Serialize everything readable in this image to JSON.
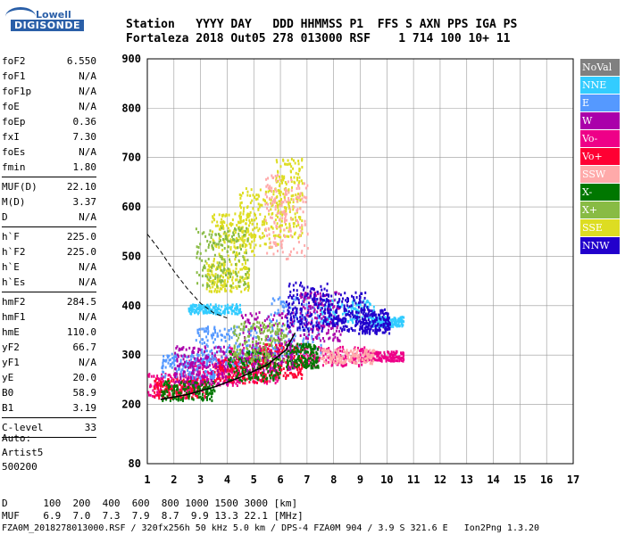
{
  "logo": {
    "line1": "Lowell",
    "line2": "DIGISONDE"
  },
  "header": {
    "line1": "Station   YYYY DAY   DDD HHMMSS P1  FFS S AXN PPS IGA PS",
    "line2": "Fortaleza 2018 Out05 278 013000 RSF    1 714 100 10+ 11"
  },
  "params": [
    {
      "k": "foF2",
      "v": "6.550"
    },
    {
      "k": "foF1",
      "v": "N/A"
    },
    {
      "k": "foF1p",
      "v": "N/A"
    },
    {
      "k": "foE",
      "v": "N/A"
    },
    {
      "k": "foEp",
      "v": "0.36"
    },
    {
      "k": "fxI",
      "v": "7.30"
    },
    {
      "k": "foEs",
      "v": "N/A"
    },
    {
      "k": "fmin",
      "v": "1.80"
    },
    {
      "sep": true
    },
    {
      "k": "MUF(D)",
      "v": "22.10"
    },
    {
      "k": "M(D)",
      "v": "3.37"
    },
    {
      "k": "D",
      "v": "N/A"
    },
    {
      "sep": true
    },
    {
      "k": "h`F",
      "v": "225.0"
    },
    {
      "k": "h`F2",
      "v": "225.0"
    },
    {
      "k": "h`E",
      "v": "N/A"
    },
    {
      "k": "h`Es",
      "v": "N/A"
    },
    {
      "sep": true
    },
    {
      "k": "hmF2",
      "v": "284.5"
    },
    {
      "k": "hmF1",
      "v": "N/A"
    },
    {
      "k": "hmE",
      "v": "110.0"
    },
    {
      "k": "yF2",
      "v": "66.7"
    },
    {
      "k": "yF1",
      "v": "N/A"
    },
    {
      "k": "yE",
      "v": "20.0"
    },
    {
      "k": "B0",
      "v": "58.9"
    },
    {
      "k": "B1",
      "v": "3.19"
    },
    {
      "sep": true
    },
    {
      "k": "C-level",
      "v": "33"
    },
    {
      "sep": true
    }
  ],
  "auto": [
    "Auto:",
    "Artist5",
    "500200"
  ],
  "legend": [
    {
      "label": "NoVal",
      "color": "#808080"
    },
    {
      "label": "NNE",
      "color": "#33ccff"
    },
    {
      "label": "E",
      "color": "#5599ff"
    },
    {
      "label": "W",
      "color": "#aa00aa"
    },
    {
      "label": "Vo-",
      "color": "#ee0088"
    },
    {
      "label": "Vo+",
      "color": "#ff0033"
    },
    {
      "label": "SSW",
      "color": "#ffaaaa"
    },
    {
      "label": "X-",
      "color": "#007700"
    },
    {
      "label": "X+",
      "color": "#88bb44"
    },
    {
      "label": "SSE",
      "color": "#dddd22"
    },
    {
      "label": "NNW",
      "color": "#2200cc"
    }
  ],
  "footer": {
    "line1": "D      100  200  400  600  800 1000 1500 3000 [km]",
    "line2": "MUF    6.9  7.0  7.3  7.9  8.7  9.9 13.3 22.1 [MHz]",
    "line3": "FZA0M_2018278013000.RSF / 320fx256h 50 kHz 5.0 km / DPS-4 FZA0M 904 / 3.9 S 321.6 E   Ion2Png 1.3.20"
  },
  "chart_data": {
    "type": "scatter",
    "xlim": [
      1,
      17
    ],
    "ylim": [
      80,
      900
    ],
    "x_ticks": [
      1,
      2,
      3,
      4,
      5,
      6,
      7,
      8,
      9,
      10,
      11,
      12,
      13,
      14,
      15,
      16,
      17
    ],
    "y_ticks": [
      80,
      200,
      300,
      400,
      500,
      600,
      700,
      800,
      900
    ],
    "grid": true,
    "xlabel": "",
    "ylabel": "",
    "series": [
      {
        "color": "#ee0088",
        "clusters": [
          [
            2.0,
            240,
            1.2,
            25
          ],
          [
            3.5,
            270,
            1.0,
            30
          ],
          [
            5.0,
            285,
            1.0,
            40
          ],
          [
            8.0,
            300,
            1.2,
            20
          ],
          [
            9.8,
            300,
            0.8,
            10
          ]
        ]
      },
      {
        "color": "#ff0033",
        "clusters": [
          [
            2.2,
            235,
            1.0,
            20
          ],
          [
            4.5,
            270,
            1.0,
            25
          ],
          [
            6.0,
            290,
            0.8,
            35
          ]
        ]
      },
      {
        "color": "#5599ff",
        "clusters": [
          [
            2.5,
            280,
            1.0,
            25
          ],
          [
            4.0,
            320,
            1.2,
            40
          ],
          [
            6.5,
            360,
            1.0,
            60
          ]
        ]
      },
      {
        "color": "#33ccff",
        "clusters": [
          [
            3.5,
            395,
            1.0,
            10
          ],
          [
            8.5,
            390,
            1.0,
            25
          ],
          [
            10.0,
            370,
            0.6,
            10
          ]
        ]
      },
      {
        "color": "#007700",
        "clusters": [
          [
            2.5,
            230,
            1.0,
            20
          ],
          [
            5.0,
            280,
            1.0,
            30
          ],
          [
            6.8,
            300,
            0.6,
            25
          ]
        ]
      },
      {
        "color": "#aa00aa",
        "clusters": [
          [
            3.0,
            280,
            1.0,
            40
          ],
          [
            5.5,
            330,
            1.0,
            60
          ],
          [
            7.5,
            380,
            0.8,
            50
          ]
        ]
      },
      {
        "color": "#2200cc",
        "clusters": [
          [
            7.0,
            400,
            0.8,
            50
          ],
          [
            8.5,
            390,
            0.8,
            40
          ],
          [
            9.5,
            370,
            0.6,
            25
          ]
        ]
      },
      {
        "color": "#dddd22",
        "clusters": [
          [
            4.2,
            540,
            0.8,
            50
          ],
          [
            5.2,
            580,
            0.8,
            60
          ],
          [
            6.3,
            620,
            0.5,
            80
          ],
          [
            4.0,
            460,
            0.8,
            30
          ]
        ]
      },
      {
        "color": "#88bb44",
        "clusters": [
          [
            3.8,
            500,
            1.0,
            60
          ],
          [
            5.2,
            330,
            1.0,
            40
          ]
        ]
      },
      {
        "color": "#ffaaaa",
        "clusters": [
          [
            8.5,
            300,
            1.0,
            15
          ],
          [
            6.2,
            580,
            0.8,
            90
          ]
        ]
      }
    ],
    "virtual_height_curve": [
      [
        1.5,
        210
      ],
      [
        2.5,
        220
      ],
      [
        3.5,
        235
      ],
      [
        4.5,
        255
      ],
      [
        5.5,
        280
      ],
      [
        6.2,
        310
      ],
      [
        6.55,
        345
      ]
    ],
    "dashed_curve": [
      [
        1.0,
        545
      ],
      [
        1.5,
        510
      ],
      [
        2.0,
        470
      ],
      [
        2.5,
        435
      ],
      [
        3.0,
        405
      ],
      [
        3.5,
        385
      ],
      [
        4.0,
        375
      ]
    ]
  }
}
